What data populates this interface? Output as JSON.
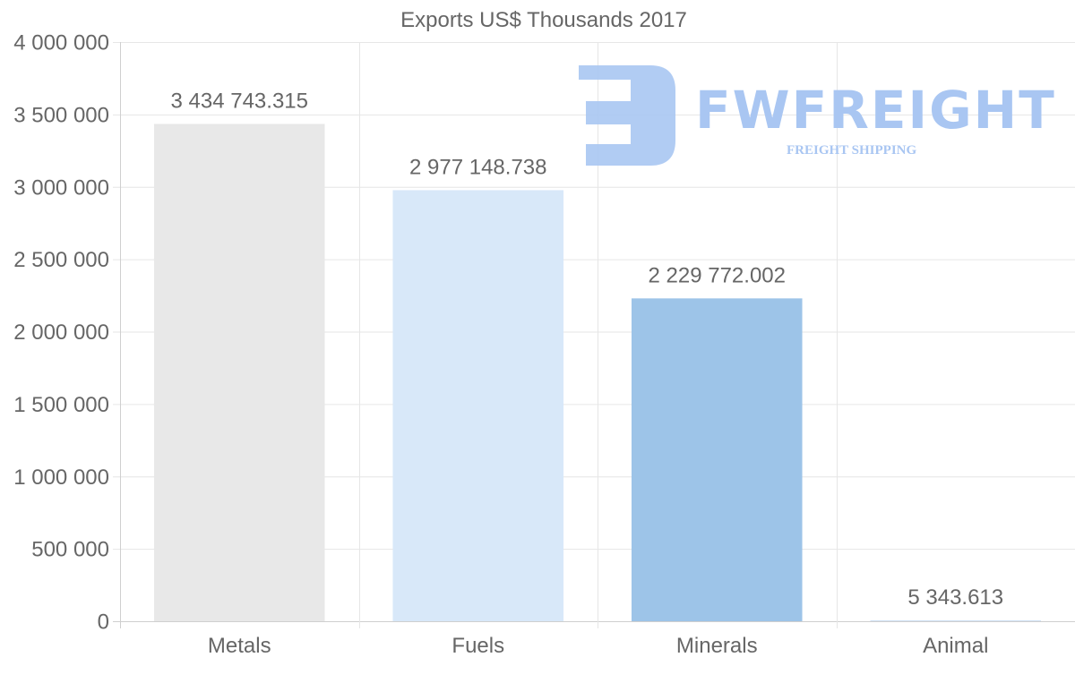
{
  "chart_data": {
    "type": "bar",
    "title": "Exports US$ Thousands 2017",
    "categories": [
      "Metals",
      "Fuels",
      "Minerals",
      "Animal"
    ],
    "values": [
      3434743.315,
      2977148.738,
      2229772.002,
      5343.613
    ],
    "value_labels": [
      "3 434 743.315",
      "2 977 148.738",
      "2 229 772.002",
      "5 343.613"
    ],
    "colors": [
      "#e8e8e8",
      "#d8e8f9",
      "#9dc4e8",
      "#c8dcf2"
    ],
    "ylim": [
      0,
      4000000
    ],
    "yticks": [
      0,
      500000,
      1000000,
      1500000,
      2000000,
      2500000,
      3000000,
      3500000,
      4000000
    ],
    "ytick_labels": [
      "0",
      "500 000",
      "1 000 000",
      "1 500 000",
      "2 000 000",
      "2 500 000",
      "3 000 000",
      "3 500 000",
      "4 000 000"
    ],
    "xlabel": "",
    "ylabel": "",
    "grid": true,
    "legend": "none"
  },
  "watermark": {
    "name": "FWFREIGHT",
    "tagline": "FREIGHT SHIPPING"
  }
}
